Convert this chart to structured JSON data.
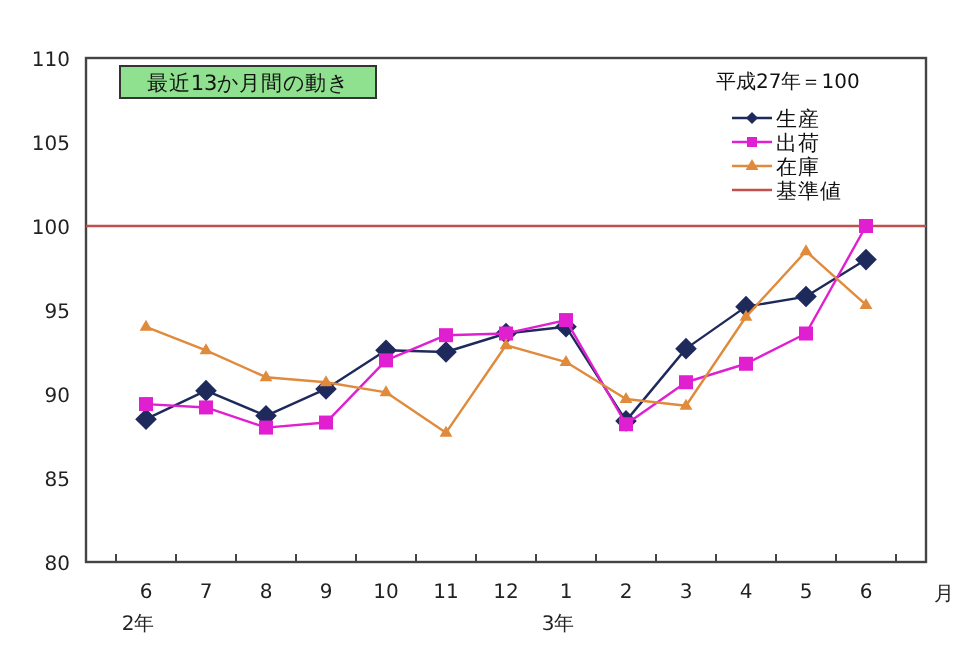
{
  "chart_data": {
    "type": "line",
    "title": "最近13か月間の動き",
    "subtitle": "平成27年＝100",
    "xlabel": "月",
    "categories": [
      "6\n2年",
      "7",
      "8",
      "9",
      "10",
      "11",
      "12",
      "1\n3年",
      "2",
      "3",
      "4",
      "5",
      "6"
    ],
    "series": [
      {
        "name": "生産",
        "color": "#1f2a5c",
        "marker": "diamond",
        "values": [
          88.5,
          90.2,
          88.7,
          90.3,
          92.6,
          92.5,
          93.6,
          94.0,
          88.4,
          92.7,
          95.2,
          95.8,
          98.0
        ]
      },
      {
        "name": "出荷",
        "color": "#e020d0",
        "marker": "square",
        "values": [
          89.4,
          89.2,
          88.0,
          88.3,
          92.0,
          93.5,
          93.6,
          94.4,
          88.2,
          90.7,
          91.8,
          93.6,
          100.0
        ]
      },
      {
        "name": "在庫",
        "color": "#e08a3c",
        "marker": "triangle",
        "values": [
          94.0,
          92.6,
          91.0,
          90.7,
          90.1,
          87.7,
          92.9,
          91.9,
          89.7,
          89.3,
          94.6,
          98.5,
          95.3
        ]
      }
    ],
    "ref_lines": [
      {
        "axis": "y",
        "value": 100,
        "label": "基準値",
        "color": "#c0504d"
      }
    ],
    "ylim": [
      80,
      110
    ],
    "yticks": [
      80,
      85,
      90,
      95,
      100,
      105,
      110
    ],
    "grid": false,
    "legend": "top right"
  }
}
